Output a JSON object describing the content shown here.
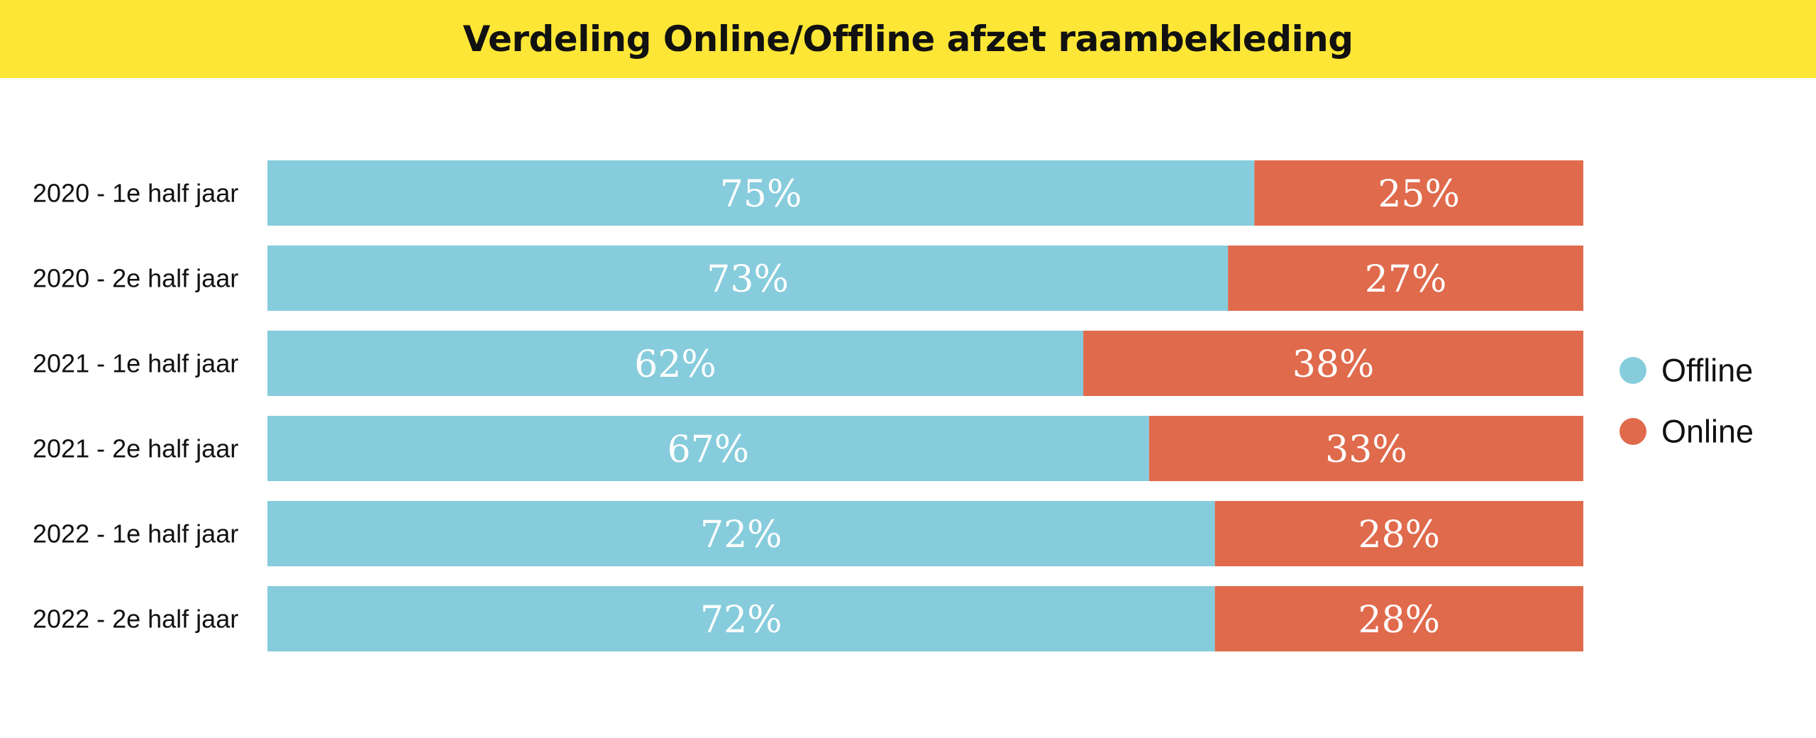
{
  "colors": {
    "title_background": "#FDE636",
    "offline": "#86CCDC",
    "online": "#E06A4C"
  },
  "chart_data": {
    "type": "bar",
    "orientation": "horizontal",
    "stacked": true,
    "title": "Verdeling Online/Offline afzet raambekleding",
    "categories": [
      "2020 - 1e half jaar",
      "2020 - 2e half jaar",
      "2021 - 1e half jaar",
      "2021 - 2e half jaar",
      "2022 - 1e half jaar",
      "2022 - 2e half jaar"
    ],
    "series": [
      {
        "name": "Offline",
        "color": "#86CCDC",
        "values": [
          75,
          73,
          62,
          67,
          72,
          72
        ],
        "labels": [
          "75%",
          "73%",
          "62%",
          "67%",
          "72%",
          "72%"
        ]
      },
      {
        "name": "Online",
        "color": "#E06A4C",
        "values": [
          25,
          27,
          38,
          33,
          28,
          28
        ],
        "labels": [
          "25%",
          "27%",
          "38%",
          "33%",
          "28%",
          "28%"
        ]
      }
    ],
    "xlim": [
      0,
      100
    ],
    "unit": "%",
    "grid": false,
    "legend_position": "right"
  }
}
